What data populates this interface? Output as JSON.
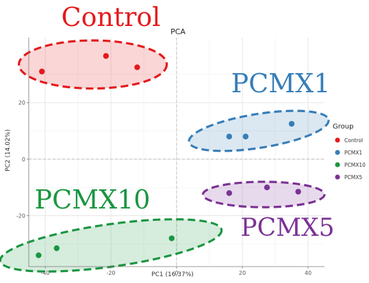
{
  "chart_data": {
    "type": "scatter",
    "title": "PCA",
    "xlabel": "PC1 (16.37%)",
    "ylabel": "PC2 (14.02%)",
    "xlim": [
      -45,
      45
    ],
    "ylim": [
      -38,
      43
    ],
    "x_ticks": [
      -40,
      -20,
      0,
      20,
      40
    ],
    "y_ticks": [
      -20,
      0,
      20
    ],
    "grid": true,
    "legend": {
      "title": "Group",
      "position": "right"
    },
    "series": [
      {
        "name": "Control",
        "label": "Control",
        "color": "#e41a1c",
        "points": [
          [
            -41.0,
            31.0
          ],
          [
            -21.5,
            36.5
          ],
          [
            -12.0,
            32.5
          ]
        ],
        "ellipse": {
          "center": [
            -25.5,
            33.5
          ],
          "semi_axes": [
            22.5,
            8.5
          ],
          "angle_deg": 0
        }
      },
      {
        "name": "PCMX1",
        "label": "PCMX1",
        "color": "#377eb8",
        "points": [
          [
            16.0,
            8.0
          ],
          [
            21.0,
            8.0
          ],
          [
            35.0,
            12.5
          ]
        ],
        "ellipse": {
          "center": [
            25.0,
            10.0
          ],
          "semi_axes": [
            21.5,
            6.0
          ],
          "angle_deg": 9
        }
      },
      {
        "name": "PCMX10",
        "label": "PCMX10",
        "color": "#1a9641",
        "points": [
          [
            -42.0,
            -34.0
          ],
          [
            -36.5,
            -31.5
          ],
          [
            -1.5,
            -28.0
          ]
        ],
        "ellipse": {
          "center": [
            -20.0,
            -30.5
          ],
          "semi_axes": [
            34.0,
            7.5
          ],
          "angle_deg": 8
        }
      },
      {
        "name": "PCMX5",
        "label": "PCMX5",
        "color": "#7b3294",
        "points": [
          [
            16.0,
            -12.0
          ],
          [
            27.5,
            -10.0
          ],
          [
            37.0,
            -11.5
          ]
        ],
        "ellipse": {
          "center": [
            26.5,
            -12.5
          ],
          "semi_axes": [
            18.5,
            4.5
          ],
          "angle_deg": 0
        }
      }
    ],
    "legend_labels": [
      "Control",
      "PCMX1",
      "PCMX10",
      "PCMX5"
    ]
  }
}
